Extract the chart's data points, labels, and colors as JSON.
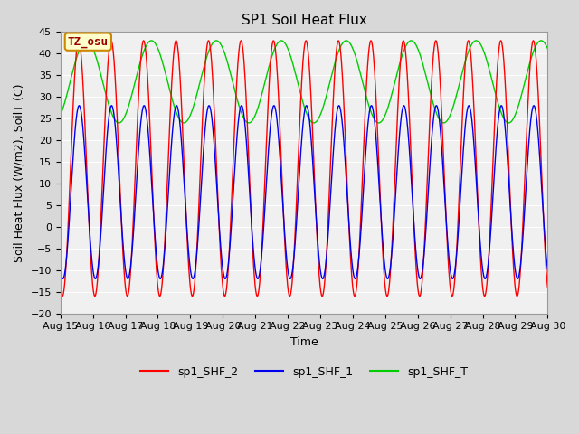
{
  "title": "SP1 Soil Heat Flux",
  "xlabel": "Time",
  "ylabel": "Soil Heat Flux (W/m2), SoilT (C)",
  "ylim": [
    -20,
    45
  ],
  "yticks": [
    -20,
    -15,
    -10,
    -5,
    0,
    5,
    10,
    15,
    20,
    25,
    30,
    35,
    40,
    45
  ],
  "xtick_labels": [
    "Aug 15",
    "Aug 16",
    "Aug 17",
    "Aug 18",
    "Aug 19",
    "Aug 20",
    "Aug 21",
    "Aug 22",
    "Aug 23",
    "Aug 24",
    "Aug 25",
    "Aug 26",
    "Aug 27",
    "Aug 28",
    "Aug 29",
    "Aug 30"
  ],
  "annotation_text": "TZ_osu",
  "annotation_bg": "#FFFFCC",
  "annotation_edge": "#CC8800",
  "annotation_text_color": "#990000",
  "shf2_color": "#FF0000",
  "shf1_color": "#0000EE",
  "shft_color": "#00CC00",
  "background_color": "#D8D8D8",
  "plot_bg_color": "#F0F0F0",
  "grid_color": "#FFFFFF",
  "title_fontsize": 11,
  "label_fontsize": 9,
  "tick_fontsize": 8,
  "legend_fontsize": 9,
  "shf2_max": 43,
  "shf2_min": -16,
  "shf2_period": 1.0,
  "shf2_phase": 0.62,
  "shf1_max": 28,
  "shf1_min": -12,
  "shf1_period": 1.0,
  "shf1_phase": 0.65,
  "shft_max": 43,
  "shft_min": 24,
  "shft_period": 2.0,
  "shft_phase": 0.3
}
